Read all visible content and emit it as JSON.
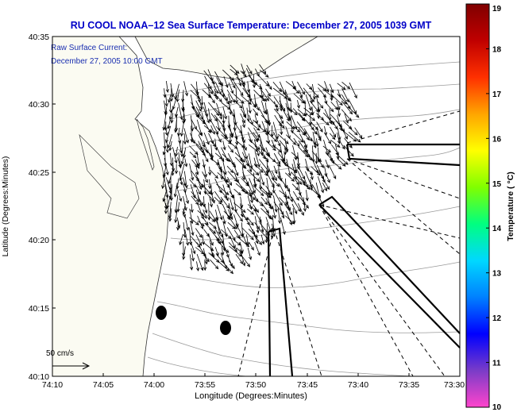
{
  "title": "RU COOL   NOAA–12  Sea Surface Temperature:  December 27, 2005 1039 GMT",
  "overlay": {
    "line1": "Raw Surface Current:",
    "line2": "December 27, 2005 10:00 GMT"
  },
  "axes": {
    "xlabel": "Longitude (Degrees:Minutes)",
    "ylabel": "Latitude (Degrees:Minutes)",
    "x_ticks": [
      "74:10",
      "74:05",
      "74:00",
      "73:55",
      "73:50",
      "73:45",
      "73:40",
      "73:35",
      "73:30"
    ],
    "y_ticks": [
      "40:35",
      "40:30",
      "40:25",
      "40:20",
      "40:15",
      "40:10"
    ]
  },
  "scale": {
    "label": "50 cm/s"
  },
  "colorbar": {
    "label": "Temperature ( °C)",
    "ticks": [
      "19",
      "18",
      "17",
      "16",
      "15",
      "14",
      "13",
      "12",
      "11",
      "10"
    ],
    "min": 10,
    "max": 19,
    "colors": [
      "#ff44cc",
      "#7a3cc8",
      "#0000ff",
      "#0080ff",
      "#00d8ff",
      "#00ff80",
      "#80ff00",
      "#ffff00",
      "#ffa500",
      "#ff3000",
      "#c00000",
      "#800000"
    ]
  },
  "colors": {
    "land": "#fbfbf2",
    "sea": "#ffffff",
    "contour": "#9a9a9a",
    "title": "#0000c8",
    "overlay": "#1a2fb0"
  }
}
